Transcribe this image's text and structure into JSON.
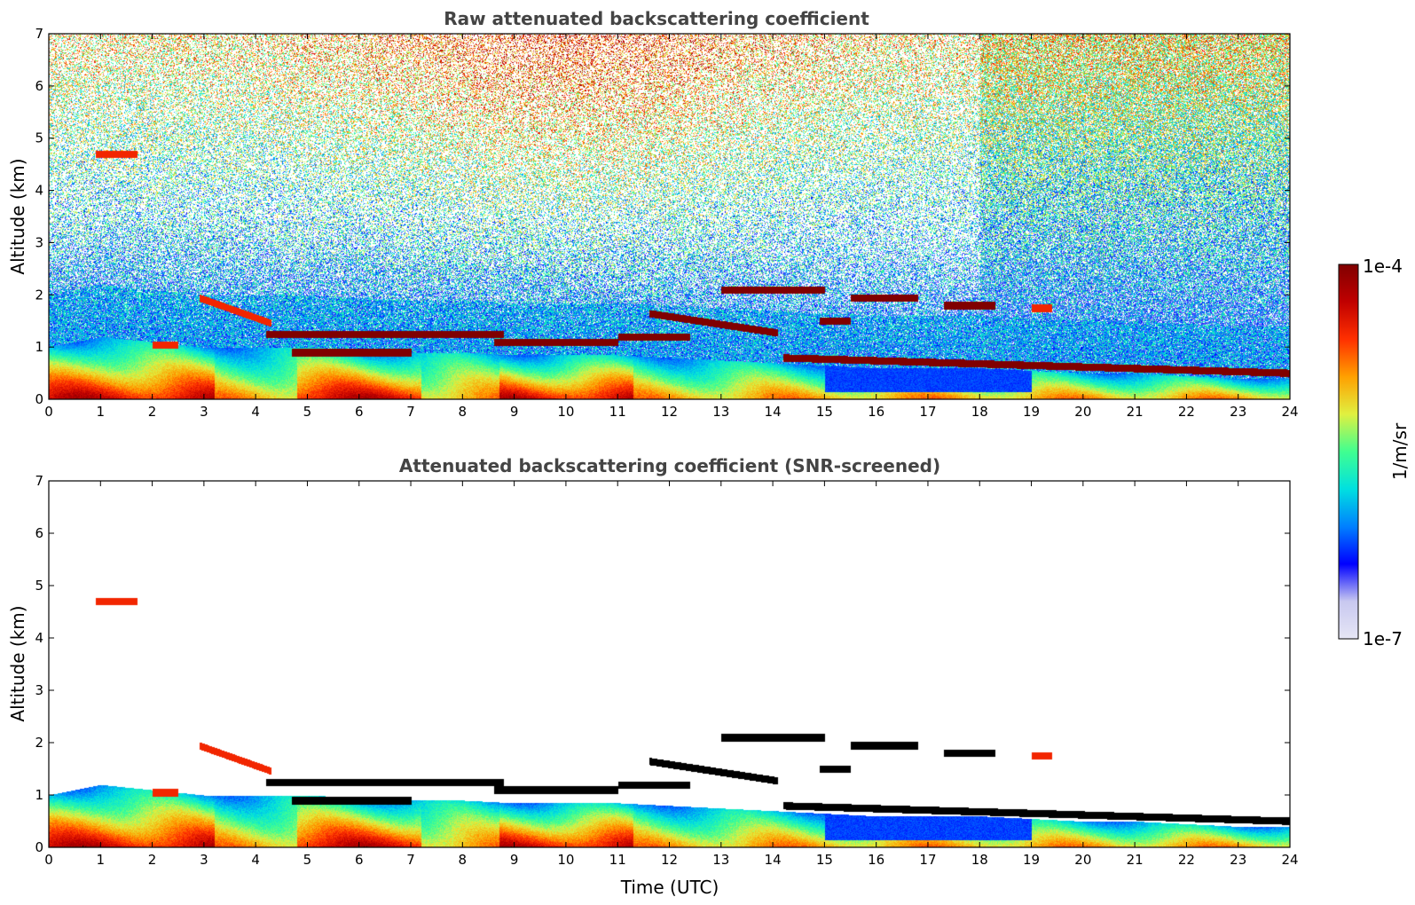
{
  "chart_data": [
    {
      "type": "heatmap",
      "title": "Raw attenuated backscattering coefficient",
      "xlabel": "",
      "ylabel": "Altitude (km)",
      "xlim": [
        0,
        24
      ],
      "ylim": [
        0,
        7
      ],
      "xticks": [
        "0",
        "1",
        "2",
        "3",
        "4",
        "5",
        "6",
        "7",
        "8",
        "9",
        "10",
        "11",
        "12",
        "13",
        "14",
        "15",
        "16",
        "17",
        "18",
        "19",
        "20",
        "21",
        "22",
        "23",
        "24"
      ],
      "yticks": [
        "0",
        "1",
        "2",
        "3",
        "4",
        "5",
        "6",
        "7"
      ],
      "screened": false,
      "colorbar": "shared",
      "features": {
        "boundary_layer": [
          [
            0,
            1.0
          ],
          [
            1,
            1.2
          ],
          [
            2,
            1.1
          ],
          [
            3,
            1.0
          ],
          [
            4,
            1.0
          ],
          [
            5,
            1.0
          ],
          [
            6,
            0.95
          ],
          [
            7,
            0.9
          ],
          [
            8,
            0.9
          ],
          [
            9,
            0.85
          ],
          [
            10,
            0.85
          ],
          [
            11,
            0.85
          ],
          [
            12,
            0.8
          ],
          [
            13,
            0.75
          ],
          [
            14,
            0.7
          ],
          [
            15,
            0.65
          ],
          [
            16,
            0.6
          ],
          [
            17,
            0.6
          ],
          [
            18,
            0.6
          ],
          [
            19,
            0.55
          ],
          [
            20,
            0.5
          ],
          [
            21,
            0.5
          ],
          [
            22,
            0.45
          ],
          [
            23,
            0.4
          ],
          [
            24,
            0.4
          ]
        ],
        "cloud_layers": [
          {
            "x": [
              0.9,
              1.7
            ],
            "y": 4.7,
            "level": "high"
          },
          {
            "x": [
              2.9,
              4.3
            ],
            "y": 1.95,
            "level": "high",
            "slope": -0.35
          },
          {
            "x": [
              2.0,
              2.5
            ],
            "y": 1.05,
            "level": "high"
          },
          {
            "x": [
              4.2,
              8.8
            ],
            "y": 1.25,
            "level": "peak"
          },
          {
            "x": [
              4.7,
              7.0
            ],
            "y": 0.9,
            "level": "peak"
          },
          {
            "x": [
              8.6,
              11.0
            ],
            "y": 1.1,
            "level": "peak"
          },
          {
            "x": [
              11.0,
              12.4
            ],
            "y": 1.2,
            "level": "peak"
          },
          {
            "x": [
              11.6,
              14.1
            ],
            "y": 1.65,
            "level": "peak",
            "slope": -0.15
          },
          {
            "x": [
              13.0,
              15.0
            ],
            "y": 2.1,
            "level": "peak"
          },
          {
            "x": [
              14.9,
              15.5
            ],
            "y": 1.5,
            "level": "peak"
          },
          {
            "x": [
              15.5,
              16.8
            ],
            "y": 1.95,
            "level": "peak"
          },
          {
            "x": [
              17.3,
              18.3
            ],
            "y": 1.8,
            "level": "peak"
          },
          {
            "x": [
              19.0,
              19.4
            ],
            "y": 1.75,
            "level": "high"
          },
          {
            "x": [
              14.2,
              24.0
            ],
            "y": 0.8,
            "level": "peak",
            "slope": -0.03
          }
        ]
      }
    },
    {
      "type": "heatmap",
      "title": "Attenuated backscattering coefficient (SNR-screened)",
      "xlabel": "Time (UTC)",
      "ylabel": "Altitude (km)",
      "xlim": [
        0,
        24
      ],
      "ylim": [
        0,
        7
      ],
      "xticks": [
        "0",
        "1",
        "2",
        "3",
        "4",
        "5",
        "6",
        "7",
        "8",
        "9",
        "10",
        "11",
        "12",
        "13",
        "14",
        "15",
        "16",
        "17",
        "18",
        "19",
        "20",
        "21",
        "22",
        "23",
        "24"
      ],
      "yticks": [
        "0",
        "1",
        "2",
        "3",
        "4",
        "5",
        "6",
        "7"
      ],
      "screened": true,
      "colorbar": "shared",
      "saturated_color": "#000000"
    }
  ],
  "colorbar": {
    "label": "1/m/sr",
    "max_label": "1e-4",
    "min_label": "1e-7",
    "scale": "log",
    "colormap": "jet",
    "colors": [
      "#e6e6f5",
      "#c8c8f0",
      "#0000ff",
      "#0080ff",
      "#00e0e0",
      "#40ff90",
      "#e0f040",
      "#ffa000",
      "#ff3000",
      "#c00000",
      "#800000"
    ]
  }
}
